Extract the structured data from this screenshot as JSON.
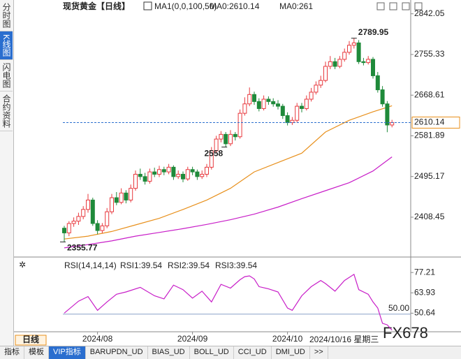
{
  "chart_data": [
    {
      "type": "candlestick",
      "title": "现货黄金【日线】",
      "indicator": "MA1(0,0,100,50)",
      "ylim": [
        2328,
        2864
      ],
      "yticks": [
        2842.05,
        2755.33,
        2668.61,
        2581.89,
        2495.17,
        2408.45
      ],
      "grid": false,
      "up_color": "#e8383d",
      "down_color": "#1f8a3a",
      "candles": [
        [
          2385,
          2390,
          2355.77,
          2375
        ],
        [
          2375,
          2400,
          2368,
          2395
        ],
        [
          2395,
          2408,
          2388,
          2400
        ],
        [
          2400,
          2418,
          2392,
          2410
        ],
        [
          2410,
          2432,
          2404,
          2425
        ],
        [
          2425,
          2458,
          2418,
          2445
        ],
        [
          2445,
          2450,
          2390,
          2395
        ],
        [
          2395,
          2402,
          2372,
          2380
        ],
        [
          2380,
          2396,
          2374,
          2390
        ],
        [
          2390,
          2428,
          2385,
          2420
        ],
        [
          2420,
          2458,
          2415,
          2450
        ],
        [
          2450,
          2462,
          2434,
          2440
        ],
        [
          2440,
          2470,
          2436,
          2460
        ],
        [
          2460,
          2466,
          2438,
          2445
        ],
        [
          2445,
          2478,
          2440,
          2470
        ],
        [
          2470,
          2508,
          2465,
          2500
        ],
        [
          2500,
          2512,
          2488,
          2495
        ],
        [
          2495,
          2503,
          2478,
          2485
        ],
        [
          2485,
          2512,
          2480,
          2505
        ],
        [
          2505,
          2514,
          2494,
          2500
        ],
        [
          2500,
          2518,
          2494,
          2510
        ],
        [
          2510,
          2516,
          2498,
          2505
        ],
        [
          2505,
          2522,
          2500,
          2515
        ],
        [
          2515,
          2519,
          2488,
          2495
        ],
        [
          2495,
          2508,
          2490,
          2500
        ],
        [
          2500,
          2506,
          2483,
          2490
        ],
        [
          2490,
          2516,
          2486,
          2510
        ],
        [
          2510,
          2516,
          2498,
          2505
        ],
        [
          2505,
          2510,
          2488,
          2495
        ],
        [
          2495,
          2508,
          2490,
          2500
        ],
        [
          2500,
          2522,
          2494,
          2515
        ],
        [
          2515,
          2558,
          2510,
          2550
        ],
        [
          2550,
          2582,
          2545,
          2575
        ],
        [
          2575,
          2592,
          2568,
          2585
        ],
        [
          2585,
          2590,
          2558,
          2565
        ],
        [
          2565,
          2594,
          2560,
          2585
        ],
        [
          2585,
          2590,
          2572,
          2580
        ],
        [
          2580,
          2638,
          2576,
          2630
        ],
        [
          2630,
          2664,
          2625,
          2650
        ],
        [
          2650,
          2685,
          2645,
          2670
        ],
        [
          2670,
          2676,
          2648,
          2655
        ],
        [
          2655,
          2662,
          2634,
          2640
        ],
        [
          2640,
          2668,
          2636,
          2660
        ],
        [
          2660,
          2666,
          2648,
          2655
        ],
        [
          2655,
          2662,
          2644,
          2650
        ],
        [
          2650,
          2658,
          2638,
          2645
        ],
        [
          2645,
          2650,
          2618,
          2625
        ],
        [
          2625,
          2632,
          2604,
          2610
        ],
        [
          2610,
          2622,
          2605,
          2615
        ],
        [
          2615,
          2652,
          2610,
          2645
        ],
        [
          2645,
          2652,
          2632,
          2640
        ],
        [
          2640,
          2668,
          2636,
          2660
        ],
        [
          2660,
          2684,
          2655,
          2675
        ],
        [
          2675,
          2698,
          2670,
          2690
        ],
        [
          2690,
          2710,
          2684,
          2700
        ],
        [
          2700,
          2740,
          2696,
          2730
        ],
        [
          2730,
          2752,
          2724,
          2740
        ],
        [
          2740,
          2748,
          2724,
          2730
        ],
        [
          2730,
          2752,
          2726,
          2745
        ],
        [
          2745,
          2768,
          2740,
          2760
        ],
        [
          2760,
          2784,
          2755,
          2775
        ],
        [
          2775,
          2789.95,
          2768,
          2780
        ],
        [
          2780,
          2786,
          2735,
          2740
        ],
        [
          2740,
          2748,
          2732,
          2738
        ],
        [
          2738,
          2752,
          2734,
          2745
        ],
        [
          2745,
          2750,
          2704,
          2710
        ],
        [
          2710,
          2718,
          2674,
          2680
        ],
        [
          2680,
          2688,
          2644,
          2650
        ],
        [
          2650,
          2656,
          2589.61,
          2605
        ],
        [
          2605,
          2616,
          2600,
          2610.14
        ]
      ],
      "series": [
        {
          "name": "MA0:2610.14",
          "color": "#e8901c",
          "x": [
            0,
            5,
            10,
            15,
            20,
            25,
            30,
            35,
            40,
            45,
            50,
            55,
            60,
            65,
            69
          ],
          "values": [
            2362,
            2368,
            2378,
            2392,
            2406,
            2425,
            2445,
            2470,
            2505,
            2525,
            2545,
            2590,
            2615,
            2633,
            2646
          ]
        },
        {
          "name": "MA0:261",
          "color": "#c81ec8",
          "x": [
            0,
            5,
            10,
            15,
            20,
            25,
            30,
            35,
            40,
            45,
            50,
            55,
            60,
            65,
            69
          ],
          "values": [
            2343,
            2350,
            2358,
            2368,
            2376,
            2384,
            2393,
            2403,
            2415,
            2430,
            2448,
            2465,
            2482,
            2507,
            2537
          ]
        }
      ]
    },
    {
      "type": "line",
      "title": "RSI(14,14,14)",
      "legend": [
        {
          "label": "RSI1:39.54",
          "color": "#222222"
        },
        {
          "label": "RSI2:39.54",
          "color": "#1e50c8"
        },
        {
          "label": "RSI3:39.54",
          "color": "#c81ec8"
        }
      ],
      "ylim": [
        38.5,
        85.5
      ],
      "yticks": [
        77.21,
        63.93,
        50.64
      ],
      "ref_line": {
        "value": 50,
        "label": "50.00"
      },
      "xticks": [
        {
          "value": 7,
          "label": "2024/08"
        },
        {
          "value": 27,
          "label": "2024/09"
        },
        {
          "value": 47,
          "label": "2024/10"
        }
      ],
      "series": [
        {
          "name": "RSI3",
          "color": "#c81ec8",
          "x": [
            0,
            3,
            5,
            7,
            9,
            11,
            13,
            16,
            19,
            21,
            23,
            25,
            27,
            29,
            31,
            33,
            35,
            37,
            38,
            39,
            40,
            41,
            43,
            45,
            47,
            48,
            50,
            52,
            54,
            55,
            57,
            59,
            61,
            62,
            64,
            65,
            66,
            67,
            68,
            69
          ],
          "values": [
            50.7,
            58.5,
            61.5,
            52.5,
            58,
            63,
            64.5,
            67.5,
            62,
            60,
            69,
            66,
            60.5,
            65,
            58,
            69.5,
            67,
            72.5,
            74.5,
            75,
            73,
            68,
            66.5,
            64.5,
            54,
            52.5,
            62,
            68,
            72,
            70,
            65,
            72,
            76,
            66,
            63,
            58,
            54,
            44,
            43,
            39.54
          ]
        }
      ]
    }
  ],
  "period": "日线",
  "cursor_date": "2024/10/16 星期三",
  "watermark": "FX678",
  "sidebar": [
    "分时图",
    "K线图",
    "闪电图",
    "合约资料"
  ],
  "toolbar": [
    "指标",
    "模板",
    "VIP指标",
    "BARUPDN_UD",
    "BIAS_UD",
    "BOLL_UD",
    "CCI_UD",
    "DMI_UD",
    ">>"
  ]
}
